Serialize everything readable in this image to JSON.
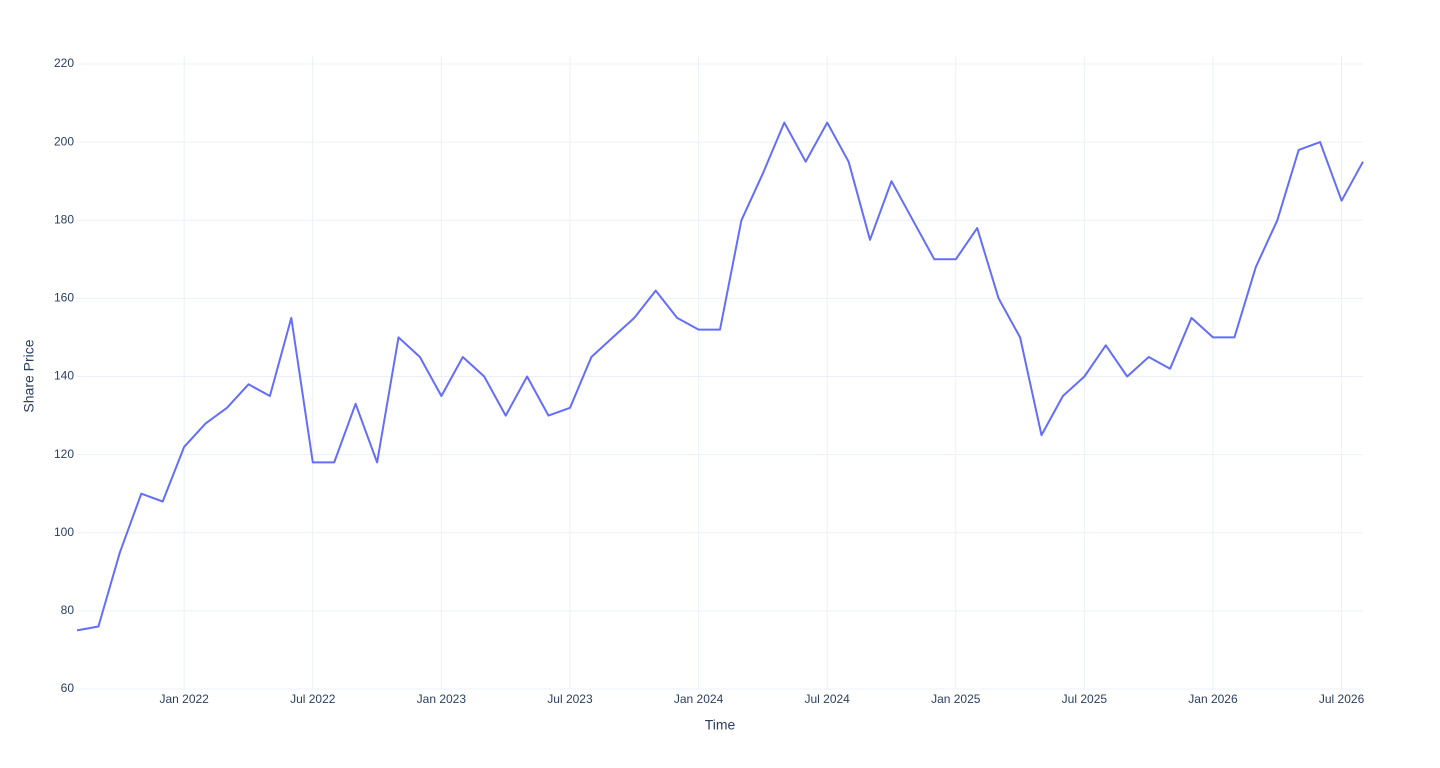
{
  "chart_data": {
    "type": "line",
    "x_label": "Time",
    "y_label": "Share Price",
    "x": [
      "2021-08",
      "2021-09",
      "2021-10",
      "2021-11",
      "2021-12",
      "2022-01",
      "2022-02",
      "2022-03",
      "2022-04",
      "2022-05",
      "2022-06",
      "2022-07",
      "2022-08",
      "2022-09",
      "2022-10",
      "2022-11",
      "2022-12",
      "2023-01",
      "2023-02",
      "2023-03",
      "2023-04",
      "2023-05",
      "2023-06",
      "2023-07",
      "2023-08",
      "2023-09",
      "2023-10",
      "2023-11",
      "2023-12",
      "2024-01",
      "2024-02",
      "2024-03",
      "2024-04",
      "2024-05",
      "2024-06",
      "2024-07",
      "2024-08",
      "2024-09",
      "2024-10",
      "2024-11",
      "2024-12",
      "2025-01",
      "2025-02",
      "2025-03",
      "2025-04",
      "2025-05",
      "2025-06",
      "2025-07",
      "2025-08",
      "2025-09",
      "2025-10",
      "2025-11",
      "2025-12",
      "2026-01",
      "2026-02",
      "2026-03",
      "2026-04",
      "2026-05",
      "2026-06",
      "2026-07",
      "2026-08"
    ],
    "series": [
      {
        "name": "Share Price",
        "color": "#636efa",
        "values": [
          75,
          76,
          95,
          110,
          108,
          122,
          128,
          132,
          138,
          135,
          155,
          118,
          118,
          133,
          118,
          150,
          145,
          135,
          145,
          140,
          130,
          140,
          130,
          132,
          145,
          150,
          155,
          162,
          155,
          152,
          152,
          180,
          192,
          205,
          195,
          205,
          195,
          175,
          190,
          180,
          170,
          170,
          178,
          160,
          150,
          125,
          135,
          140,
          148,
          140,
          145,
          142,
          155,
          150,
          150,
          168,
          180,
          198,
          200,
          185,
          195
        ]
      }
    ],
    "xlim": [
      "2021-08",
      "2026-08"
    ],
    "xticks": [
      {
        "value": "2022-01",
        "label": "Jan 2022"
      },
      {
        "value": "2022-07",
        "label": "Jul 2022"
      },
      {
        "value": "2023-01",
        "label": "Jan 2023"
      },
      {
        "value": "2023-07",
        "label": "Jul 2023"
      },
      {
        "value": "2024-01",
        "label": "Jan 2024"
      },
      {
        "value": "2024-07",
        "label": "Jul 2024"
      },
      {
        "value": "2025-01",
        "label": "Jan 2025"
      },
      {
        "value": "2025-07",
        "label": "Jul 2025"
      },
      {
        "value": "2026-01",
        "label": "Jan 2026"
      },
      {
        "value": "2026-07",
        "label": "Jul 2026"
      }
    ],
    "ylim": [
      60,
      220
    ],
    "yticks": [
      60,
      80,
      100,
      120,
      140,
      160,
      180,
      200,
      220
    ],
    "grid": true
  }
}
